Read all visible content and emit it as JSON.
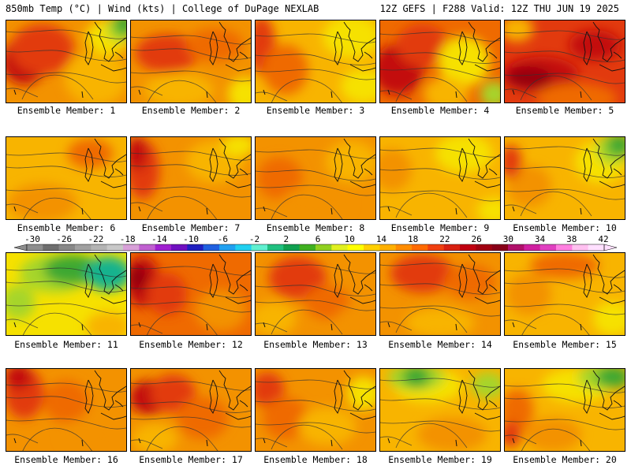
{
  "header": {
    "left": "850mb Temp (°C) | Wind (kts) | College of DuPage NEXLAB",
    "right": "12Z GEFS | F288 Valid: 12Z THU JUN 19 2025"
  },
  "caption_prefix": "Ensemble Member: ",
  "members": [
    1,
    2,
    3,
    4,
    5,
    6,
    7,
    8,
    9,
    10,
    11,
    12,
    13,
    14,
    15,
    16,
    17,
    18,
    19,
    20
  ],
  "colorbar": {
    "labels": [
      "-30",
      "-26",
      "-22",
      "-18",
      "-14",
      "-10",
      "-6",
      "-2",
      "2",
      "6",
      "10",
      "14",
      "18",
      "22",
      "26",
      "30",
      "34",
      "38",
      "42"
    ],
    "colors": [
      "#8e8e8e",
      "#6e6e6e",
      "#888888",
      "#a0a0a0",
      "#b4b4b4",
      "#c8c8c8",
      "#d8a0d8",
      "#c060d0",
      "#a020d0",
      "#7010c0",
      "#2020c0",
      "#2060e0",
      "#20a0f0",
      "#20d0f0",
      "#60f0d0",
      "#20c080",
      "#10a050",
      "#40b020",
      "#90d020",
      "#e0f020",
      "#ffff00",
      "#ffd000",
      "#ffb000",
      "#ff8c00",
      "#ff6a00",
      "#f04010",
      "#d82010",
      "#c00010",
      "#a00010",
      "#880018",
      "#b0106a",
      "#d020a0",
      "#e040c0",
      "#ff80e0",
      "#ffc0f0",
      "#ffe0ff"
    ]
  },
  "palette": {
    "green": "#3ca832",
    "yellowgreen": "#a6d52a",
    "yellow": "#f6e100",
    "lightorange": "#f8b400",
    "orange": "#f39200",
    "darkorange": "#ef6a00",
    "red": "#e23a0e",
    "darkred": "#c3110f",
    "maroon": "#96000f",
    "teal": "#18b28e"
  },
  "maps": [
    {
      "bg": "#f39200",
      "blobs": [
        [
          "darkred",
          0.15,
          0.5,
          0.3,
          0.45
        ],
        [
          "red",
          0.3,
          0.35,
          0.45,
          0.5
        ],
        [
          "lightorange",
          0.75,
          0.7,
          0.45,
          0.55
        ],
        [
          "yellow",
          0.85,
          0.2,
          0.3,
          0.3
        ],
        [
          "yellowgreen",
          0.95,
          0.1,
          0.15,
          0.2
        ],
        [
          "green",
          0.98,
          0.05,
          0.08,
          0.15
        ]
      ]
    },
    {
      "bg": "#f39200",
      "blobs": [
        [
          "red",
          0.3,
          0.4,
          0.45,
          0.35
        ],
        [
          "darkorange",
          0.7,
          0.3,
          0.4,
          0.3
        ],
        [
          "lightorange",
          0.4,
          0.85,
          0.5,
          0.3
        ],
        [
          "yellow",
          0.95,
          0.9,
          0.2,
          0.3
        ]
      ]
    },
    {
      "bg": "#f8b400",
      "blobs": [
        [
          "red",
          0.05,
          0.3,
          0.15,
          0.6
        ],
        [
          "darkorange",
          0.25,
          0.6,
          0.3,
          0.5
        ],
        [
          "yellow",
          0.8,
          0.2,
          0.4,
          0.4
        ],
        [
          "yellow",
          0.9,
          0.8,
          0.3,
          0.3
        ]
      ]
    },
    {
      "bg": "#ef6a00",
      "blobs": [
        [
          "darkred",
          0.15,
          0.6,
          0.35,
          0.5
        ],
        [
          "red",
          0.35,
          0.3,
          0.35,
          0.4
        ],
        [
          "yellow",
          0.7,
          0.5,
          0.35,
          0.5
        ],
        [
          "yellowgreen",
          0.95,
          0.9,
          0.15,
          0.2
        ],
        [
          "lightorange",
          0.55,
          0.9,
          0.3,
          0.3
        ]
      ]
    },
    {
      "bg": "#e23a0e",
      "blobs": [
        [
          "darkred",
          0.3,
          0.65,
          0.55,
          0.3
        ],
        [
          "maroon",
          0.2,
          0.7,
          0.3,
          0.15
        ],
        [
          "darkred",
          0.75,
          0.3,
          0.35,
          0.25
        ],
        [
          "darkorange",
          0.6,
          0.95,
          0.6,
          0.25
        ],
        [
          "lightorange",
          0.1,
          0.1,
          0.2,
          0.2
        ]
      ]
    },
    {
      "bg": "#f8b400",
      "blobs": [
        [
          "darkorange",
          0.7,
          0.2,
          0.3,
          0.25
        ],
        [
          "orange",
          0.3,
          0.8,
          0.5,
          0.35
        ],
        [
          "lightorange",
          0.85,
          0.7,
          0.3,
          0.3
        ]
      ]
    },
    {
      "bg": "#f39200",
      "blobs": [
        [
          "red",
          0.1,
          0.4,
          0.2,
          0.6
        ],
        [
          "darkred",
          0.05,
          0.2,
          0.1,
          0.3
        ],
        [
          "lightorange",
          0.7,
          0.3,
          0.4,
          0.4
        ],
        [
          "yellow",
          0.9,
          0.1,
          0.2,
          0.15
        ]
      ]
    },
    {
      "bg": "#f39200",
      "blobs": [
        [
          "darkorange",
          0.2,
          0.5,
          0.3,
          0.4
        ],
        [
          "lightorange",
          0.8,
          0.3,
          0.35,
          0.4
        ],
        [
          "orange",
          0.5,
          0.8,
          0.5,
          0.3
        ]
      ]
    },
    {
      "bg": "#f8b400",
      "blobs": [
        [
          "orange",
          0.1,
          0.4,
          0.25,
          0.4
        ],
        [
          "yellow",
          0.7,
          0.2,
          0.4,
          0.35
        ],
        [
          "lightorange",
          0.5,
          0.7,
          0.5,
          0.4
        ],
        [
          "yellow",
          0.95,
          0.9,
          0.2,
          0.2
        ]
      ]
    },
    {
      "bg": "#f8b400",
      "blobs": [
        [
          "yellow",
          0.8,
          0.3,
          0.35,
          0.4
        ],
        [
          "yellowgreen",
          0.9,
          0.15,
          0.2,
          0.25
        ],
        [
          "green",
          0.95,
          0.1,
          0.12,
          0.15
        ],
        [
          "orange",
          0.2,
          0.6,
          0.3,
          0.4
        ],
        [
          "red",
          0.05,
          0.3,
          0.1,
          0.3
        ]
      ]
    },
    {
      "bg": "#f6e100",
      "blobs": [
        [
          "yellowgreen",
          0.4,
          0.25,
          0.5,
          0.35
        ],
        [
          "green",
          0.55,
          0.2,
          0.4,
          0.25
        ],
        [
          "teal",
          0.85,
          0.25,
          0.3,
          0.3
        ],
        [
          "lightorange",
          0.85,
          0.9,
          0.3,
          0.25
        ],
        [
          "yellowgreen",
          0.1,
          0.6,
          0.2,
          0.3
        ]
      ]
    },
    {
      "bg": "#ef6a00",
      "blobs": [
        [
          "darkred",
          0.1,
          0.35,
          0.2,
          0.5
        ],
        [
          "maroon",
          0.05,
          0.3,
          0.1,
          0.2
        ],
        [
          "red",
          0.3,
          0.5,
          0.25,
          0.4
        ],
        [
          "orange",
          0.75,
          0.7,
          0.35,
          0.4
        ]
      ]
    },
    {
      "bg": "#f39200",
      "blobs": [
        [
          "red",
          0.35,
          0.3,
          0.4,
          0.4
        ],
        [
          "darkorange",
          0.6,
          0.6,
          0.3,
          0.3
        ],
        [
          "lightorange",
          0.15,
          0.8,
          0.3,
          0.3
        ],
        [
          "orange",
          0.85,
          0.85,
          0.3,
          0.3
        ]
      ]
    },
    {
      "bg": "#f39200",
      "blobs": [
        [
          "red",
          0.35,
          0.25,
          0.45,
          0.35
        ],
        [
          "darkorange",
          0.75,
          0.35,
          0.35,
          0.3
        ],
        [
          "lightorange",
          0.5,
          0.85,
          0.5,
          0.25
        ]
      ]
    },
    {
      "bg": "#f8b400",
      "blobs": [
        [
          "darkorange",
          0.5,
          0.15,
          0.5,
          0.2
        ],
        [
          "orange",
          0.2,
          0.5,
          0.3,
          0.4
        ],
        [
          "yellow",
          0.9,
          0.8,
          0.25,
          0.3
        ]
      ]
    },
    {
      "bg": "#f39200",
      "blobs": [
        [
          "red",
          0.15,
          0.3,
          0.25,
          0.5
        ],
        [
          "darkred",
          0.1,
          0.1,
          0.15,
          0.2
        ],
        [
          "darkorange",
          0.5,
          0.4,
          0.3,
          0.4
        ],
        [
          "orange",
          0.7,
          0.8,
          0.4,
          0.3
        ]
      ]
    },
    {
      "bg": "#f39200",
      "blobs": [
        [
          "darkred",
          0.15,
          0.35,
          0.25,
          0.3
        ],
        [
          "red",
          0.35,
          0.3,
          0.3,
          0.35
        ],
        [
          "darkorange",
          0.6,
          0.6,
          0.35,
          0.4
        ],
        [
          "lightorange",
          0.2,
          0.85,
          0.3,
          0.25
        ]
      ]
    },
    {
      "bg": "#f39200",
      "blobs": [
        [
          "red",
          0.1,
          0.25,
          0.2,
          0.3
        ],
        [
          "darkorange",
          0.25,
          0.6,
          0.3,
          0.4
        ],
        [
          "lightorange",
          0.6,
          0.7,
          0.4,
          0.35
        ],
        [
          "yellow",
          0.9,
          0.3,
          0.2,
          0.3
        ]
      ]
    },
    {
      "bg": "#f8b400",
      "blobs": [
        [
          "yellow",
          0.4,
          0.2,
          0.5,
          0.3
        ],
        [
          "yellowgreen",
          0.3,
          0.1,
          0.4,
          0.2
        ],
        [
          "green",
          0.3,
          0.1,
          0.15,
          0.15
        ],
        [
          "yellowgreen",
          0.9,
          0.2,
          0.2,
          0.2
        ],
        [
          "orange",
          0.6,
          0.8,
          0.5,
          0.3
        ]
      ]
    },
    {
      "bg": "#f8b400",
      "blobs": [
        [
          "darkorange",
          0.1,
          0.5,
          0.2,
          0.4
        ],
        [
          "red",
          0.05,
          0.8,
          0.1,
          0.2
        ],
        [
          "yellow",
          0.6,
          0.2,
          0.5,
          0.3
        ],
        [
          "yellowgreen",
          0.8,
          0.1,
          0.3,
          0.2
        ],
        [
          "green",
          0.9,
          0.1,
          0.2,
          0.15
        ],
        [
          "orange",
          0.4,
          0.8,
          0.4,
          0.3
        ]
      ]
    }
  ]
}
